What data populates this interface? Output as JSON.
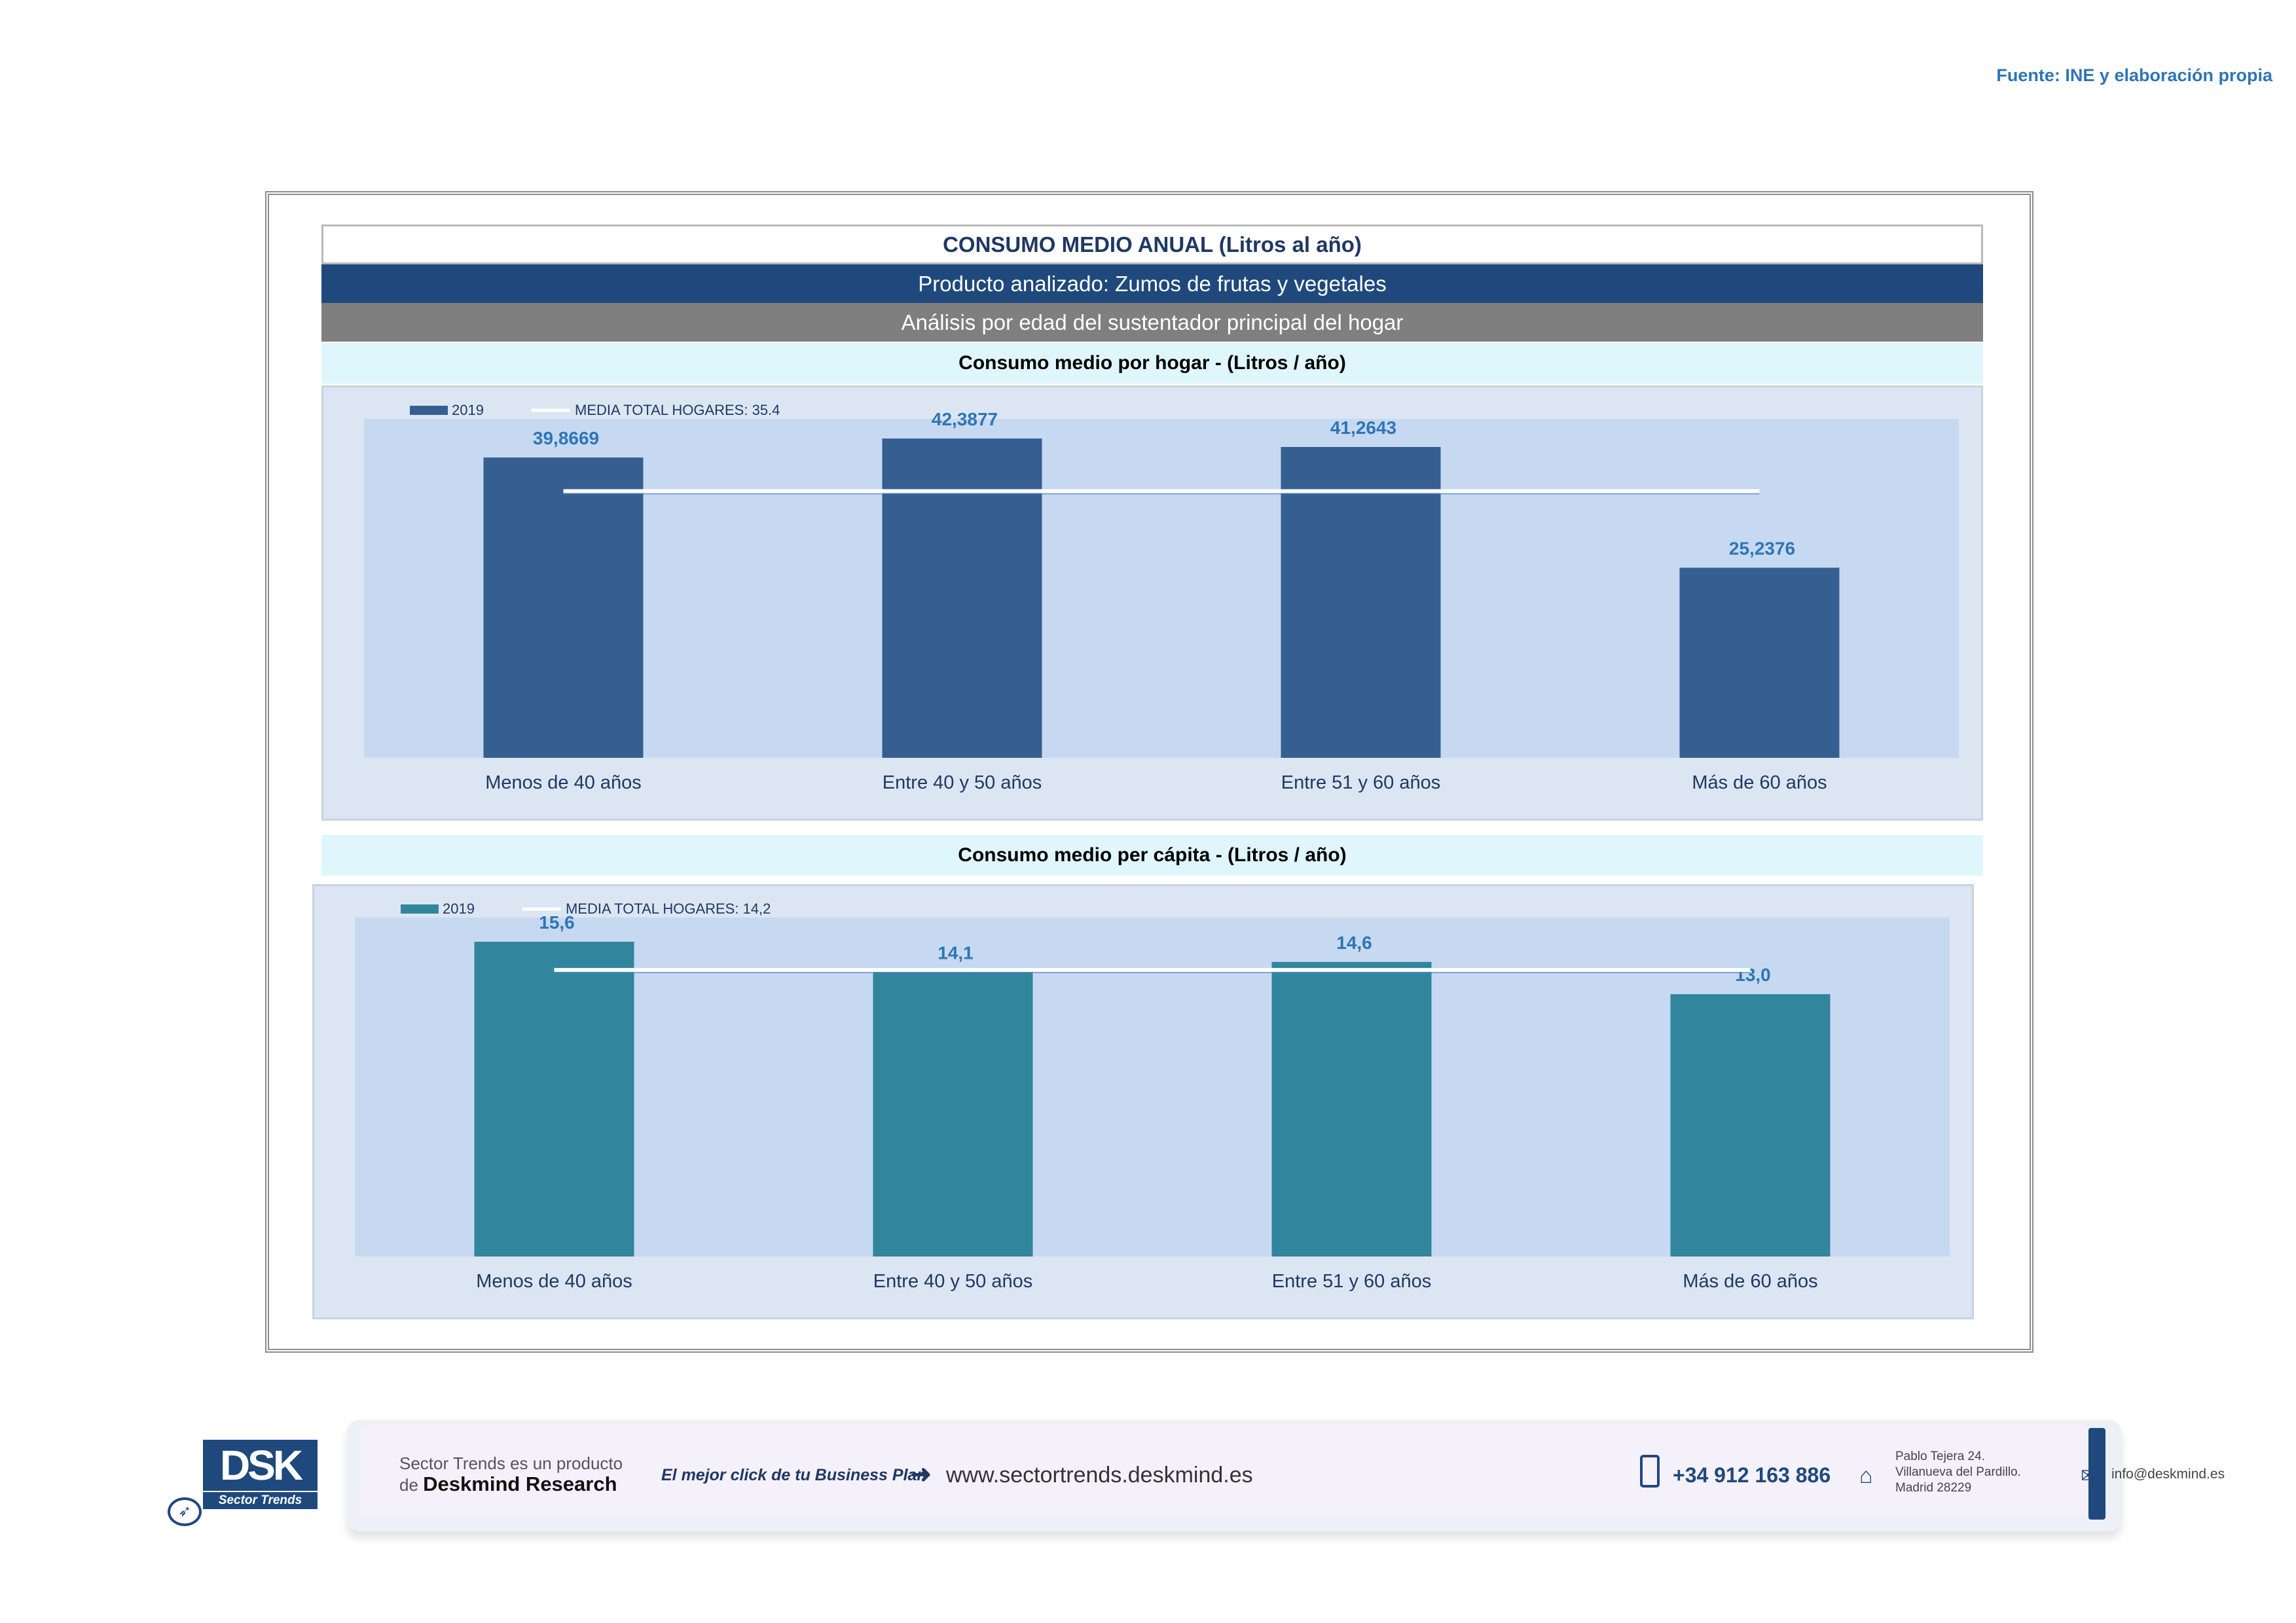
{
  "source": "Fuente: INE y elaboración propia",
  "header": {
    "title": "CONSUMO MEDIO ANUAL (Litros al año)",
    "product": "Producto analizado: Zumos de frutas y vegetales",
    "analysis": "Análisis por edad del sustentador principal del hogar"
  },
  "sections": [
    {
      "title": "Consumo medio por hogar -  (Litros / año)"
    },
    {
      "title": "Consumo medio per cápita -  (Litros / año)"
    }
  ],
  "colors": {
    "bar1": "#355f91",
    "bar2": "#31859c",
    "plot_bg": "#c6d9f1",
    "label": "#2e75b6",
    "axis_text": "#1f3864",
    "mean_line": "#ffffff"
  },
  "chart_data": [
    {
      "type": "bar",
      "categories": [
        "Menos de 40 años",
        "Entre 40 y 50 años",
        "Entre 51  y 60 años",
        "Más de 60 años"
      ],
      "series": [
        {
          "name": "2019",
          "values": [
            39.8669,
            42.3877,
            41.2643,
            25.2376
          ]
        }
      ],
      "data_labels": [
        "39,8669",
        "42,3877",
        "41,2643",
        "25,2376"
      ],
      "mean_line": {
        "label": "MEDIA TOTAL  HOGARES:",
        "value_text": "35.4",
        "value": 35.4
      },
      "ylim": [
        0,
        45
      ],
      "grid": false,
      "legend_position": "top-left"
    },
    {
      "type": "bar",
      "categories": [
        "Menos de 40 años",
        "Entre 40 y 50 años",
        "Entre 51  y 60 años",
        "Más de 60 años"
      ],
      "series": [
        {
          "name": "2019",
          "values": [
            15.6,
            14.1,
            14.6,
            13.0
          ]
        }
      ],
      "data_labels": [
        "15,6",
        "14,1",
        "14,6",
        "13,0"
      ],
      "mean_line": {
        "label": "MEDIA TOTAL  HOGARES:",
        "value_text": "14,2",
        "value": 14.2
      },
      "ylim": [
        0,
        16.8
      ],
      "grid": false,
      "legend_position": "top-left"
    }
  ],
  "footer": {
    "logo_text": "DSK",
    "logo_subtitle": "Sector Trends",
    "product_line": "Sector Trends es un producto",
    "product_de": "de",
    "product_brand": "Deskmind Research",
    "slogan": "El mejor click de tu Business Plan",
    "website": "www.sectortrends.deskmind.es",
    "phone": "+34 912 163 886",
    "address_lines": [
      "Pablo Tejera 24.",
      "Villanueva del Pardillo.",
      "Madrid 28229"
    ],
    "email": "info@deskmind.es"
  }
}
